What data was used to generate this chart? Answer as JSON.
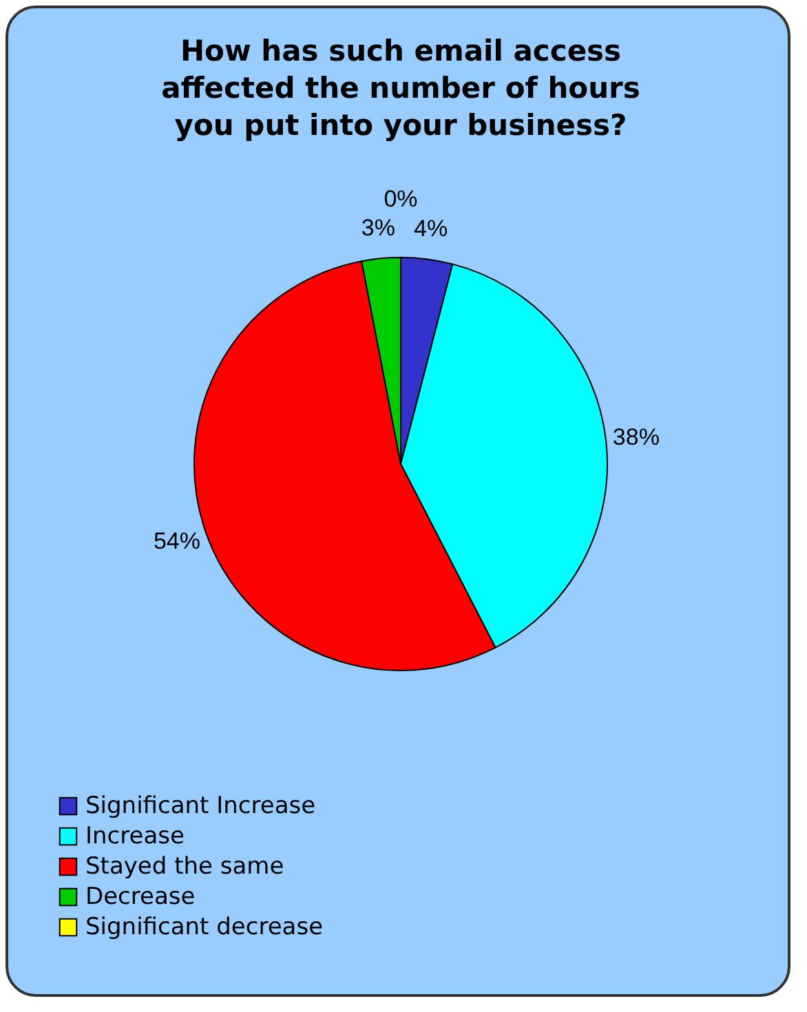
{
  "chart_data": {
    "type": "pie",
    "title": "How has such email access affected the number of hours you put into your business?",
    "categories": [
      "Significant Increase",
      "Increase",
      "Stayed the same",
      "Decrease",
      "Significant decrease"
    ],
    "values": [
      4,
      38,
      54,
      3,
      0
    ],
    "colors": [
      "#3333cc",
      "#00ffff",
      "#ff0000",
      "#00cc00",
      "#ffff00"
    ],
    "value_labels": [
      "4%",
      "38%",
      "54%",
      "3%",
      "0%"
    ],
    "legend": "bottom"
  }
}
